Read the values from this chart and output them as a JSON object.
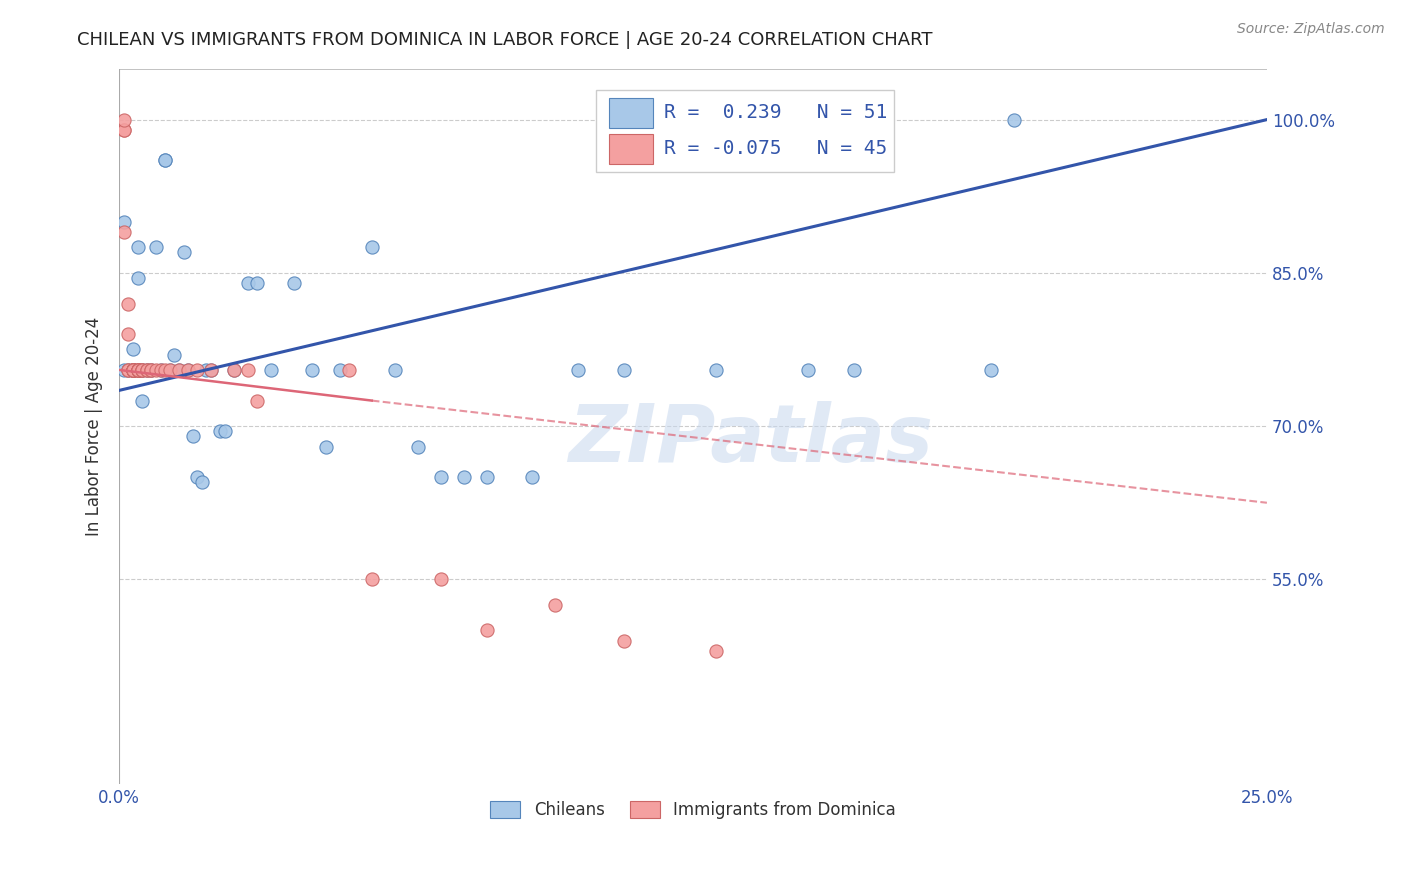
{
  "title": "CHILEAN VS IMMIGRANTS FROM DOMINICA IN LABOR FORCE | AGE 20-24 CORRELATION CHART",
  "source": "Source: ZipAtlas.com",
  "ylabel": "In Labor Force | Age 20-24",
  "xlim": [
    0.0,
    0.25
  ],
  "ylim": [
    0.35,
    1.05
  ],
  "xticks": [
    0.0,
    0.05,
    0.1,
    0.15,
    0.2,
    0.25
  ],
  "xticklabels": [
    "0.0%",
    "",
    "",
    "",
    "",
    "25.0%"
  ],
  "ytick_positions": [
    0.55,
    0.7,
    0.85,
    1.0
  ],
  "ytick_labels": [
    "55.0%",
    "70.0%",
    "85.0%",
    "100.0%"
  ],
  "legend_label1": "Chileans",
  "legend_label2": "Immigrants from Dominica",
  "r1": 0.239,
  "n1": 51,
  "r2": -0.075,
  "n2": 45,
  "color_blue": "#a8c8e8",
  "color_pink": "#f4a0a0",
  "color_blue_edge": "#5585bb",
  "color_pink_edge": "#cc6666",
  "color_blue_line": "#3355aa",
  "color_pink_line": "#dd6677",
  "watermark": "ZIPatlas",
  "blue_line_x0": 0.0,
  "blue_line_y0": 0.735,
  "blue_line_x1": 0.25,
  "blue_line_y1": 1.0,
  "pink_line_solid_x0": 0.0,
  "pink_line_solid_y0": 0.755,
  "pink_line_solid_x1": 0.055,
  "pink_line_solid_y1": 0.725,
  "pink_line_dash_x0": 0.055,
  "pink_line_dash_y0": 0.725,
  "pink_line_dash_x1": 0.25,
  "pink_line_dash_y1": 0.625,
  "blue_x": [
    0.001,
    0.001,
    0.002,
    0.003,
    0.003,
    0.003,
    0.004,
    0.004,
    0.004,
    0.005,
    0.005,
    0.006,
    0.007,
    0.008,
    0.009,
    0.01,
    0.01,
    0.011,
    0.012,
    0.013,
    0.014,
    0.015,
    0.016,
    0.017,
    0.018,
    0.019,
    0.02,
    0.022,
    0.023,
    0.025,
    0.028,
    0.03,
    0.033,
    0.038,
    0.042,
    0.045,
    0.048,
    0.055,
    0.06,
    0.065,
    0.07,
    0.075,
    0.08,
    0.09,
    0.1,
    0.11,
    0.13,
    0.15,
    0.16,
    0.19,
    0.195
  ],
  "blue_y": [
    0.755,
    0.9,
    0.755,
    0.755,
    0.775,
    0.755,
    0.875,
    0.845,
    0.755,
    0.755,
    0.725,
    0.755,
    0.755,
    0.875,
    0.755,
    0.96,
    0.96,
    0.755,
    0.77,
    0.755,
    0.87,
    0.755,
    0.69,
    0.65,
    0.645,
    0.755,
    0.755,
    0.695,
    0.695,
    0.755,
    0.84,
    0.84,
    0.755,
    0.84,
    0.755,
    0.68,
    0.755,
    0.875,
    0.755,
    0.68,
    0.65,
    0.65,
    0.65,
    0.65,
    0.755,
    0.755,
    0.755,
    0.755,
    0.755,
    0.755,
    1.0
  ],
  "pink_x": [
    0.001,
    0.001,
    0.001,
    0.001,
    0.002,
    0.002,
    0.002,
    0.002,
    0.003,
    0.003,
    0.003,
    0.003,
    0.003,
    0.003,
    0.003,
    0.004,
    0.004,
    0.004,
    0.004,
    0.004,
    0.005,
    0.005,
    0.005,
    0.006,
    0.006,
    0.007,
    0.007,
    0.008,
    0.009,
    0.01,
    0.011,
    0.013,
    0.015,
    0.017,
    0.02,
    0.025,
    0.028,
    0.03,
    0.05,
    0.055,
    0.07,
    0.08,
    0.095,
    0.11,
    0.13
  ],
  "pink_y": [
    0.99,
    0.99,
    1.0,
    0.89,
    0.82,
    0.79,
    0.755,
    0.755,
    0.755,
    0.755,
    0.755,
    0.755,
    0.755,
    0.755,
    0.755,
    0.755,
    0.755,
    0.755,
    0.755,
    0.755,
    0.755,
    0.755,
    0.755,
    0.755,
    0.755,
    0.755,
    0.755,
    0.755,
    0.755,
    0.755,
    0.755,
    0.755,
    0.755,
    0.755,
    0.755,
    0.755,
    0.755,
    0.725,
    0.755,
    0.55,
    0.55,
    0.5,
    0.525,
    0.49,
    0.48
  ]
}
